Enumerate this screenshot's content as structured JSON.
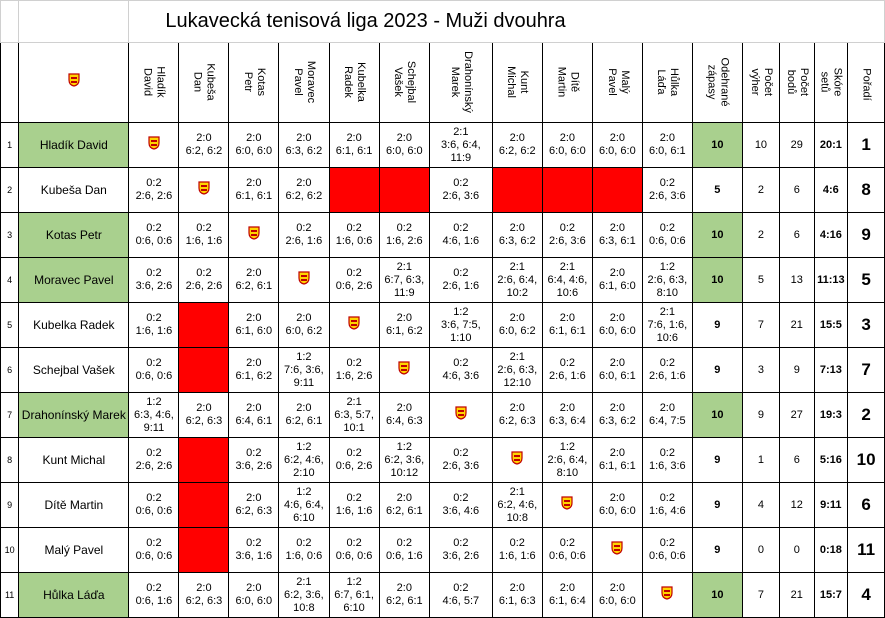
{
  "title": "Lukavecká tenisová liga 2023 - Muži dvouhra",
  "column_headers": {
    "players": [
      "Hladík David",
      "Kubeša Dan",
      "Kotas Petr",
      "Moravec Pavel",
      "Kubelka Radek",
      "Schejbal Vašek",
      "Drahonínský Marek",
      "Kunt Michal",
      "Dítě Martin",
      "Malý Pavel",
      "Hůlka Láďa"
    ],
    "stats": [
      "Odehrané zápasy",
      "Počet výher",
      "Počet bodů",
      "Skóre setů",
      "Pořadí"
    ]
  },
  "logo_icon": "club-logo-icon",
  "colors": {
    "highlight_green": "#a9d08e",
    "blocked_red": "#ff0000"
  },
  "rows": [
    {
      "num": "1",
      "name": "Hladík David",
      "green": true,
      "cells": [
        {
          "t": "logo"
        },
        {
          "t": "s",
          "l1": "2:0",
          "l2": "6:2, 6:2"
        },
        {
          "t": "s",
          "l1": "2:0",
          "l2": "6:0, 6:0"
        },
        {
          "t": "s",
          "l1": "2:0",
          "l2": "6:3, 6:2"
        },
        {
          "t": "s",
          "l1": "2:0",
          "l2": "6:1, 6:1"
        },
        {
          "t": "s",
          "l1": "2:0",
          "l2": "6:0, 6:0"
        },
        {
          "t": "s",
          "l1": "2:1",
          "l2": "3:6, 6:4,",
          "l3": "11:9"
        },
        {
          "t": "s",
          "l1": "2:0",
          "l2": "6:2, 6:2"
        },
        {
          "t": "s",
          "l1": "2:0",
          "l2": "6:0, 6:0"
        },
        {
          "t": "s",
          "l1": "2:0",
          "l2": "6:0, 6:0"
        },
        {
          "t": "s",
          "l1": "2:0",
          "l2": "6:0, 6:1"
        }
      ],
      "played": "10",
      "wins": "10",
      "points": "29",
      "sets": "20:1",
      "rank": "1"
    },
    {
      "num": "2",
      "name": "Kubeša Dan",
      "green": false,
      "cells": [
        {
          "t": "s",
          "l1": "0:2",
          "l2": "2:6, 2:6"
        },
        {
          "t": "logo"
        },
        {
          "t": "s",
          "l1": "2:0",
          "l2": "6:1, 6:1"
        },
        {
          "t": "s",
          "l1": "2:0",
          "l2": "6:2, 6:2"
        },
        {
          "t": "red"
        },
        {
          "t": "red"
        },
        {
          "t": "s",
          "l1": "0:2",
          "l2": "2:6, 3:6"
        },
        {
          "t": "red"
        },
        {
          "t": "red"
        },
        {
          "t": "red"
        },
        {
          "t": "s",
          "l1": "0:2",
          "l2": "2:6, 3:6"
        }
      ],
      "played": "5",
      "wins": "2",
      "points": "6",
      "sets": "4:6",
      "rank": "8"
    },
    {
      "num": "3",
      "name": "Kotas Petr",
      "green": true,
      "cells": [
        {
          "t": "s",
          "l1": "0:2",
          "l2": "0:6, 0:6"
        },
        {
          "t": "s",
          "l1": "0:2",
          "l2": "1:6, 1:6"
        },
        {
          "t": "logo"
        },
        {
          "t": "s",
          "l1": "0:2",
          "l2": "2:6, 1:6"
        },
        {
          "t": "s",
          "l1": "0:2",
          "l2": "1:6, 0:6"
        },
        {
          "t": "s",
          "l1": "0:2",
          "l2": "1:6, 2:6"
        },
        {
          "t": "s",
          "l1": "0:2",
          "l2": "4:6, 1:6"
        },
        {
          "t": "s",
          "l1": "2:0",
          "l2": "6:3, 6:2"
        },
        {
          "t": "s",
          "l1": "0:2",
          "l2": "2:6, 3:6"
        },
        {
          "t": "s",
          "l1": "2:0",
          "l2": "6:3, 6:1"
        },
        {
          "t": "s",
          "l1": "0:2",
          "l2": "0:6, 0:6"
        }
      ],
      "played": "10",
      "wins": "2",
      "points": "6",
      "sets": "4:16",
      "rank": "9"
    },
    {
      "num": "4",
      "name": "Moravec Pavel",
      "green": true,
      "cells": [
        {
          "t": "s",
          "l1": "0:2",
          "l2": "3:6, 2:6"
        },
        {
          "t": "s",
          "l1": "0:2",
          "l2": "2:6, 2:6"
        },
        {
          "t": "s",
          "l1": "2:0",
          "l2": "6:2, 6:1"
        },
        {
          "t": "logo"
        },
        {
          "t": "s",
          "l1": "0:2",
          "l2": "0:6, 2:6"
        },
        {
          "t": "s",
          "l1": "2:1",
          "l2": "6:7, 6:3,",
          "l3": "11:9"
        },
        {
          "t": "s",
          "l1": "0:2",
          "l2": "2:6, 1:6"
        },
        {
          "t": "s",
          "l1": "2:1",
          "l2": "2:6, 6:4,",
          "l3": "10:2"
        },
        {
          "t": "s",
          "l1": "2:1",
          "l2": "6:4, 4:6,",
          "l3": "10:6"
        },
        {
          "t": "s",
          "l1": "2:0",
          "l2": "6:1, 6:0"
        },
        {
          "t": "s",
          "l1": "1:2",
          "l2": "2:6, 6:3,",
          "l3": "8:10"
        }
      ],
      "played": "10",
      "wins": "5",
      "points": "13",
      "sets": "11:13",
      "rank": "5"
    },
    {
      "num": "5",
      "name": "Kubelka Radek",
      "green": false,
      "cells": [
        {
          "t": "s",
          "l1": "0:2",
          "l2": "1:6, 1:6"
        },
        {
          "t": "red"
        },
        {
          "t": "s",
          "l1": "2:0",
          "l2": "6:1, 6:0"
        },
        {
          "t": "s",
          "l1": "2:0",
          "l2": "6:0, 6:2"
        },
        {
          "t": "logo"
        },
        {
          "t": "s",
          "l1": "2:0",
          "l2": "6:1, 6:2"
        },
        {
          "t": "s",
          "l1": "1:2",
          "l2": "3:6, 7:5,",
          "l3": "1:10"
        },
        {
          "t": "s",
          "l1": "2:0",
          "l2": "6:0, 6:2"
        },
        {
          "t": "s",
          "l1": "2:0",
          "l2": "6:1, 6:1"
        },
        {
          "t": "s",
          "l1": "2:0",
          "l2": "6:0, 6:0"
        },
        {
          "t": "s",
          "l1": "2:1",
          "l2": "7:6, 1:6,",
          "l3": "10:6"
        }
      ],
      "played": "9",
      "wins": "7",
      "points": "21",
      "sets": "15:5",
      "rank": "3"
    },
    {
      "num": "6",
      "name": "Schejbal Vašek",
      "green": false,
      "cells": [
        {
          "t": "s",
          "l1": "0:2",
          "l2": "0:6, 0:6"
        },
        {
          "t": "red"
        },
        {
          "t": "s",
          "l1": "2:0",
          "l2": "6:1, 6:2"
        },
        {
          "t": "s",
          "l1": "1:2",
          "l2": "7:6, 3:6,",
          "l3": "9:11"
        },
        {
          "t": "s",
          "l1": "0:2",
          "l2": "1:6, 2:6"
        },
        {
          "t": "logo"
        },
        {
          "t": "s",
          "l1": "0:2",
          "l2": "4:6, 3:6"
        },
        {
          "t": "s",
          "l1": "2:1",
          "l2": "2:6, 6:3,",
          "l3": "12:10"
        },
        {
          "t": "s",
          "l1": "0:2",
          "l2": "2:6, 1:6"
        },
        {
          "t": "s",
          "l1": "2:0",
          "l2": "6:0, 6:1"
        },
        {
          "t": "s",
          "l1": "0:2",
          "l2": "2:6, 1:6"
        }
      ],
      "played": "9",
      "wins": "3",
      "points": "9",
      "sets": "7:13",
      "rank": "7"
    },
    {
      "num": "7",
      "name": "Drahonínský Marek",
      "green": true,
      "cells": [
        {
          "t": "s",
          "l1": "1:2",
          "l2": "6:3, 4:6,",
          "l3": "9:11"
        },
        {
          "t": "s",
          "l1": "2:0",
          "l2": "6:2, 6:3"
        },
        {
          "t": "s",
          "l1": "2:0",
          "l2": "6:4, 6:1"
        },
        {
          "t": "s",
          "l1": "2:0",
          "l2": "6:2, 6:1"
        },
        {
          "t": "s",
          "l1": "2:1",
          "l2": "6:3, 5:7,",
          "l3": "10:1"
        },
        {
          "t": "s",
          "l1": "2:0",
          "l2": "6:4, 6:3"
        },
        {
          "t": "logo"
        },
        {
          "t": "s",
          "l1": "2:0",
          "l2": "6:2, 6:3"
        },
        {
          "t": "s",
          "l1": "2:0",
          "l2": "6:3, 6:4"
        },
        {
          "t": "s",
          "l1": "2:0",
          "l2": "6:3, 6:2"
        },
        {
          "t": "s",
          "l1": "2:0",
          "l2": "6:4, 7:5"
        }
      ],
      "played": "10",
      "wins": "9",
      "points": "27",
      "sets": "19:3",
      "rank": "2"
    },
    {
      "num": "8",
      "name": "Kunt Michal",
      "green": false,
      "cells": [
        {
          "t": "s",
          "l1": "0:2",
          "l2": "2:6, 2:6"
        },
        {
          "t": "red"
        },
        {
          "t": "s",
          "l1": "0:2",
          "l2": "3:6, 2:6"
        },
        {
          "t": "s",
          "l1": "1:2",
          "l2": "6:2, 4:6,",
          "l3": "2:10"
        },
        {
          "t": "s",
          "l1": "0:2",
          "l2": "0:6, 2:6"
        },
        {
          "t": "s",
          "l1": "1:2",
          "l2": "6:2, 3:6,",
          "l3": "10:12"
        },
        {
          "t": "s",
          "l1": "0:2",
          "l2": "2:6, 3:6"
        },
        {
          "t": "logo"
        },
        {
          "t": "s",
          "l1": "1:2",
          "l2": "2:6, 6:4,",
          "l3": "8:10"
        },
        {
          "t": "s",
          "l1": "2:0",
          "l2": "6:1, 6:1"
        },
        {
          "t": "s",
          "l1": "0:2",
          "l2": "1:6, 3:6"
        }
      ],
      "played": "9",
      "wins": "1",
      "points": "6",
      "sets": "5:16",
      "rank": "10"
    },
    {
      "num": "9",
      "name": "Dítě Martin",
      "green": false,
      "cells": [
        {
          "t": "s",
          "l1": "0:2",
          "l2": "0:6, 0:6"
        },
        {
          "t": "red"
        },
        {
          "t": "s",
          "l1": "2:0",
          "l2": "6:2, 6:3"
        },
        {
          "t": "s",
          "l1": "1:2",
          "l2": "4:6, 6:4,",
          "l3": "6:10"
        },
        {
          "t": "s",
          "l1": "0:2",
          "l2": "1:6, 1:6"
        },
        {
          "t": "s",
          "l1": "2:0",
          "l2": "6:2, 6:1"
        },
        {
          "t": "s",
          "l1": "0:2",
          "l2": "3:6, 4:6"
        },
        {
          "t": "s",
          "l1": "2:1",
          "l2": "6:2, 4:6,",
          "l3": "10:8"
        },
        {
          "t": "logo"
        },
        {
          "t": "s",
          "l1": "2:0",
          "l2": "6:0, 6:0"
        },
        {
          "t": "s",
          "l1": "0:2",
          "l2": "1:6, 4:6"
        }
      ],
      "played": "9",
      "wins": "4",
      "points": "12",
      "sets": "9:11",
      "rank": "6"
    },
    {
      "num": "10",
      "name": "Malý Pavel",
      "green": false,
      "cells": [
        {
          "t": "s",
          "l1": "0:2",
          "l2": "0:6, 0:6"
        },
        {
          "t": "red"
        },
        {
          "t": "s",
          "l1": "0:2",
          "l2": "3:6, 1:6"
        },
        {
          "t": "s",
          "l1": "0:2",
          "l2": "1:6, 0:6"
        },
        {
          "t": "s",
          "l1": "0:2",
          "l2": "0:6, 0:6"
        },
        {
          "t": "s",
          "l1": "0:2",
          "l2": "0:6, 1:6"
        },
        {
          "t": "s",
          "l1": "0:2",
          "l2": "3:6, 2:6"
        },
        {
          "t": "s",
          "l1": "0:2",
          "l2": "1:6, 1:6"
        },
        {
          "t": "s",
          "l1": "0:2",
          "l2": "0:6, 0:6"
        },
        {
          "t": "logo"
        },
        {
          "t": "s",
          "l1": "0:2",
          "l2": "0:6, 0:6"
        }
      ],
      "played": "9",
      "wins": "0",
      "points": "0",
      "sets": "0:18",
      "rank": "11"
    },
    {
      "num": "11",
      "name": "Hůlka Láďa",
      "green": true,
      "cells": [
        {
          "t": "s",
          "l1": "0:2",
          "l2": "0:6, 1:6"
        },
        {
          "t": "s",
          "l1": "2:0",
          "l2": "6:2, 6:3"
        },
        {
          "t": "s",
          "l1": "2:0",
          "l2": "6:0, 6:0"
        },
        {
          "t": "s",
          "l1": "2:1",
          "l2": "6:2, 3:6,",
          "l3": "10:8"
        },
        {
          "t": "s",
          "l1": "1:2",
          "l2": "6:7, 6:1,",
          "l3": "6:10"
        },
        {
          "t": "s",
          "l1": "2:0",
          "l2": "6:2, 6:1"
        },
        {
          "t": "s",
          "l1": "0:2",
          "l2": "4:6, 5:7"
        },
        {
          "t": "s",
          "l1": "2:0",
          "l2": "6:1, 6:3"
        },
        {
          "t": "s",
          "l1": "2:0",
          "l2": "6:1, 6:4"
        },
        {
          "t": "s",
          "l1": "2:0",
          "l2": "6:0, 6:0"
        },
        {
          "t": "logo"
        }
      ],
      "played": "10",
      "wins": "7",
      "points": "21",
      "sets": "15:7",
      "rank": "4"
    }
  ]
}
